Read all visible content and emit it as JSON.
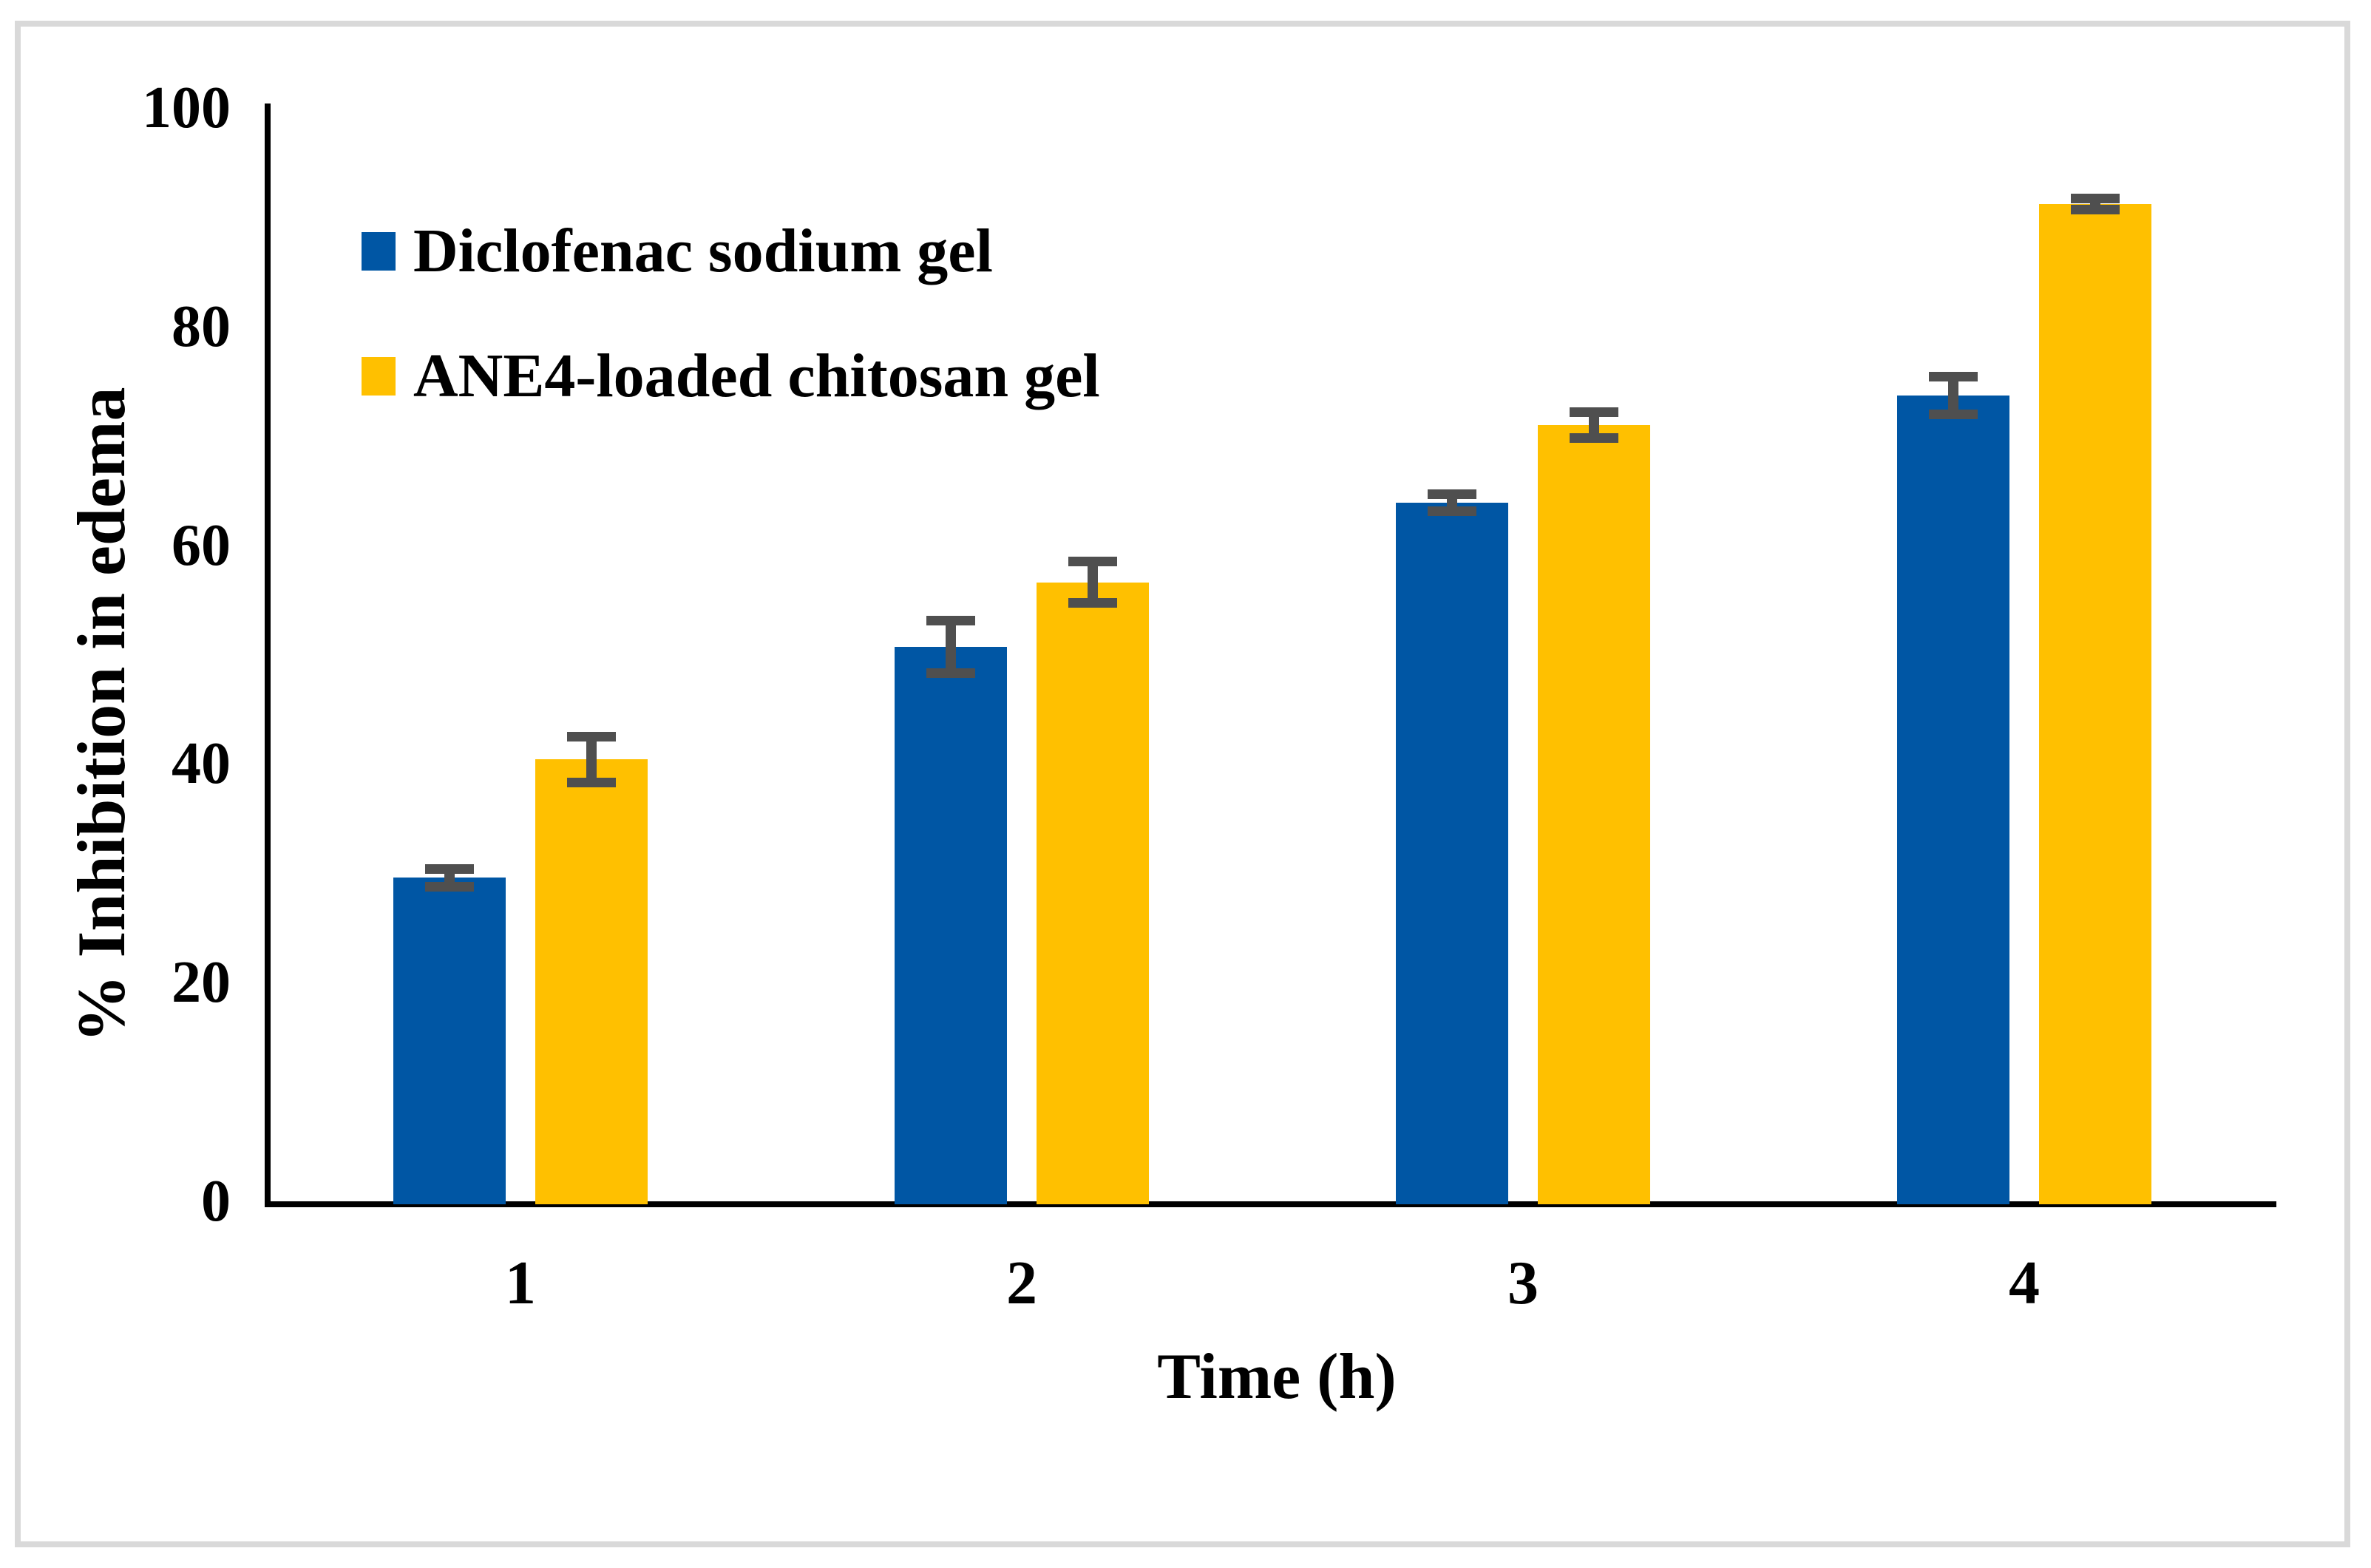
{
  "figure": {
    "background_color": "#ffffff",
    "frame_color": "#D9D9D9",
    "axis_color": "#000000",
    "error_bar_color": "#4F4F4F"
  },
  "chart_data": {
    "type": "bar",
    "title": "",
    "xlabel": "Time (h)",
    "ylabel": "% Inhibition in edema",
    "categories": [
      "1",
      "2",
      "3",
      "4"
    ],
    "series": [
      {
        "name": "Diclofenac sodium gel",
        "color": "#0056A4",
        "values": [
          29.6,
          50.7,
          63.9,
          73.7
        ],
        "errors": [
          0.8,
          2.4,
          0.8,
          1.7
        ]
      },
      {
        "name": "ANE4-loaded chitosan gel",
        "color": "#FFC000",
        "values": [
          40.4,
          56.6,
          71.0,
          91.2
        ],
        "errors": [
          2.1,
          1.9,
          1.2,
          0.5
        ]
      }
    ],
    "ylim": [
      0,
      100
    ],
    "y_ticks": [
      "0",
      "20",
      "40",
      "60",
      "80",
      "100"
    ],
    "y_tick_values": [
      0,
      20,
      40,
      60,
      80,
      100
    ],
    "grid": false,
    "legend_position": "upper-left-inside",
    "error_bars": true
  }
}
